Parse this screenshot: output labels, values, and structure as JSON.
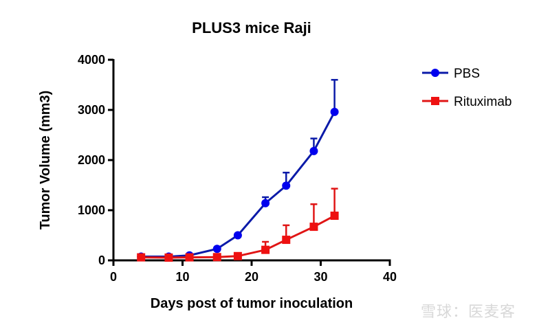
{
  "chart_data": {
    "type": "line",
    "title": "PLUS3 mice Raji",
    "xlabel": "Days post of tumor inoculation",
    "ylabel": "Tumor Volume (mm3)",
    "xlim": [
      0,
      40
    ],
    "ylim": [
      0,
      4000
    ],
    "xticks": [
      0,
      10,
      20,
      30,
      40
    ],
    "yticks": [
      0,
      1000,
      2000,
      3000,
      4000
    ],
    "grid": false,
    "legend_position": "top-right",
    "series": [
      {
        "name": "PBS",
        "color": "#0000ee",
        "line_color": "#0a1aa8",
        "marker": "circle",
        "x": [
          4,
          8,
          11,
          15,
          18,
          22,
          25,
          29,
          32
        ],
        "y": [
          75,
          75,
          100,
          230,
          500,
          1140,
          1490,
          2180,
          2960
        ],
        "err_upper": [
          75,
          75,
          100,
          230,
          500,
          1260,
          1750,
          2430,
          3600
        ]
      },
      {
        "name": "Rituximab",
        "color": "#ee1111",
        "line_color": "#e01515",
        "marker": "square",
        "x": [
          4,
          8,
          11,
          15,
          18,
          22,
          25,
          29,
          32
        ],
        "y": [
          60,
          55,
          60,
          65,
          85,
          210,
          410,
          670,
          890
        ],
        "err_upper": [
          60,
          55,
          60,
          65,
          85,
          370,
          700,
          1120,
          1430
        ]
      }
    ]
  },
  "watermark": "雪球：医麦客"
}
